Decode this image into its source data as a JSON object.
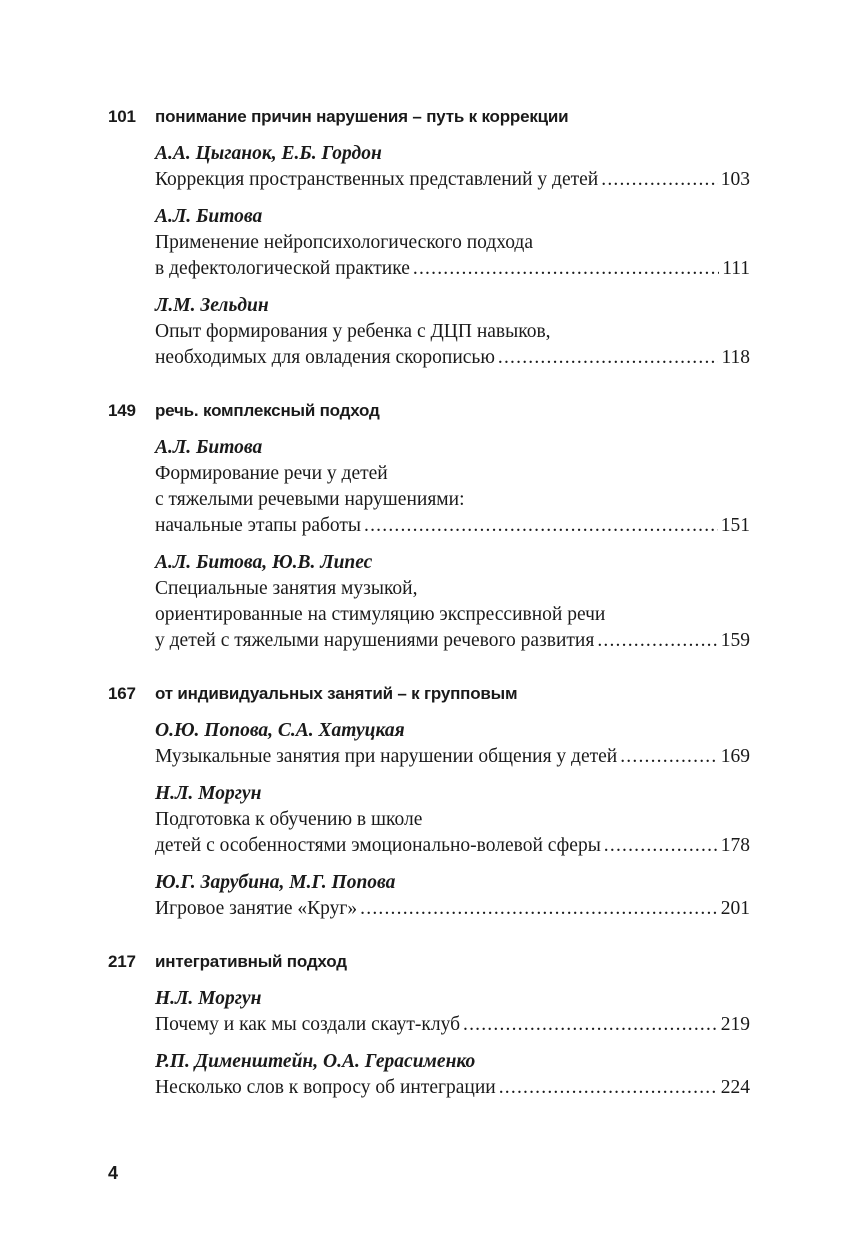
{
  "sections": [
    {
      "page": "101",
      "title": "понимание причин нарушения – путь к коррекции",
      "entries": [
        {
          "authors": "А.А. Цыганок, Е.Б. Гордон",
          "lines": [],
          "last_line": "Коррекция пространственных представлений у детей",
          "page": "103"
        },
        {
          "authors": "А.Л. Битова",
          "lines": [
            "Применение нейропсихологического подхода"
          ],
          "last_line": "в дефектологической практике",
          "page": "111"
        },
        {
          "authors": "Л.М. Зельдин",
          "lines": [
            "Опыт формирования у ребенка с ДЦП навыков,"
          ],
          "last_line": "необходимых для овладения скорописью",
          "page": "118"
        }
      ]
    },
    {
      "page": "149",
      "title": "речь. комплексный подход",
      "entries": [
        {
          "authors": "А.Л. Битова",
          "lines": [
            "Формирование речи у детей",
            "с тяжелыми речевыми нарушениями:"
          ],
          "last_line": "начальные этапы работы",
          "page": "151"
        },
        {
          "authors": "А.Л. Битова, Ю.В. Липес",
          "lines": [
            "Специальные занятия музыкой,",
            "ориентированные на стимуляцию экспрессивной речи"
          ],
          "last_line": "у детей с тяжелыми нарушениями речевого развития",
          "page": "159"
        }
      ]
    },
    {
      "page": "167",
      "title": "от индивидуальных занятий – к групповым",
      "entries": [
        {
          "authors": "О.Ю. Попова, С.А. Хатуцкая",
          "lines": [],
          "last_line": "Музыкальные занятия при нарушении общения у детей",
          "page": "169"
        },
        {
          "authors": "Н.Л. Моргун",
          "lines": [
            "Подготовка к обучению в школе"
          ],
          "last_line": "детей с особенностями эмоционально-волевой сферы",
          "page": "178"
        },
        {
          "authors": "Ю.Г. Зарубина, М.Г. Попова",
          "lines": [],
          "last_line": "Игровое занятие «Круг»",
          "page": "201"
        }
      ]
    },
    {
      "page": "217",
      "title": "интегративный подход",
      "entries": [
        {
          "authors": "Н.Л. Моргун",
          "lines": [],
          "last_line": "Почему и как мы создали скаут-клуб",
          "page": "219"
        },
        {
          "authors": "Р.П. Дименштейн, О.А. Герасименко",
          "lines": [],
          "last_line": "Несколько слов к вопросу об интеграции",
          "page": "224"
        }
      ]
    }
  ],
  "page_number": "4"
}
